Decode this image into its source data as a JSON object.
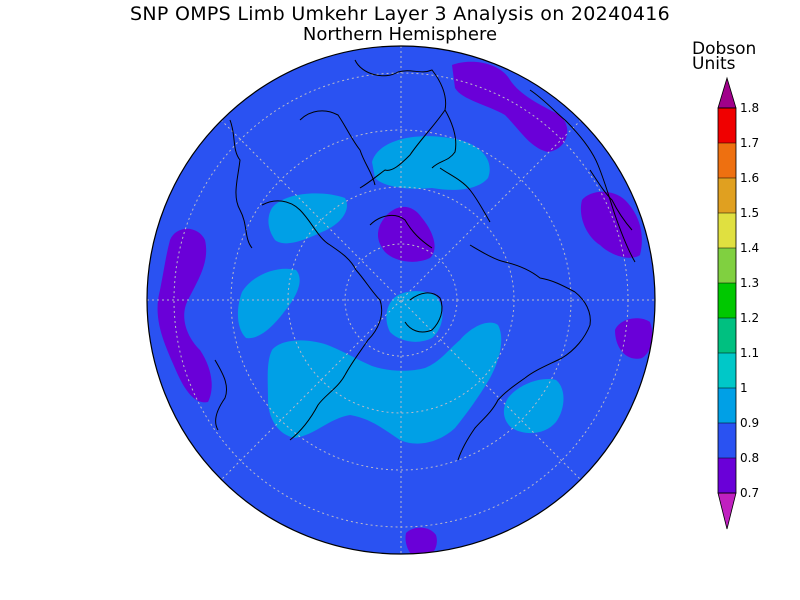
{
  "title": "SNP OMPS Limb Umkehr Layer 3 Analysis on 20240416",
  "subtitle": "Northern Hemisphere",
  "colorbar": {
    "units_line1": "Dobson",
    "units_line2": "Units",
    "levels": [
      {
        "label": "0.7",
        "color": "#8000ff"
      },
      {
        "label": "0.8",
        "color": "#6a00d8"
      },
      {
        "label": "0.9",
        "color": "#2a52f2"
      },
      {
        "label": "1",
        "color": "#00a0e6"
      },
      {
        "label": "1.1",
        "color": "#00c8c8"
      },
      {
        "label": "1.2",
        "color": "#00c080"
      },
      {
        "label": "1.3",
        "color": "#00c800"
      },
      {
        "label": "1.4",
        "color": "#80d040"
      },
      {
        "label": "1.5",
        "color": "#e0e040"
      },
      {
        "label": "1.6",
        "color": "#e0a020"
      },
      {
        "label": "1.7",
        "color": "#ee7010"
      },
      {
        "label": "1.8",
        "color": "#f00000"
      }
    ],
    "low_extend_color": "#c020c0",
    "high_extend_color": "#a0008a"
  },
  "map": {
    "projection": "north-polar-stereographic",
    "background_color": "#2a52f2",
    "field_colors": {
      "low": "#6a00d8",
      "high": "#00a0e6"
    }
  }
}
